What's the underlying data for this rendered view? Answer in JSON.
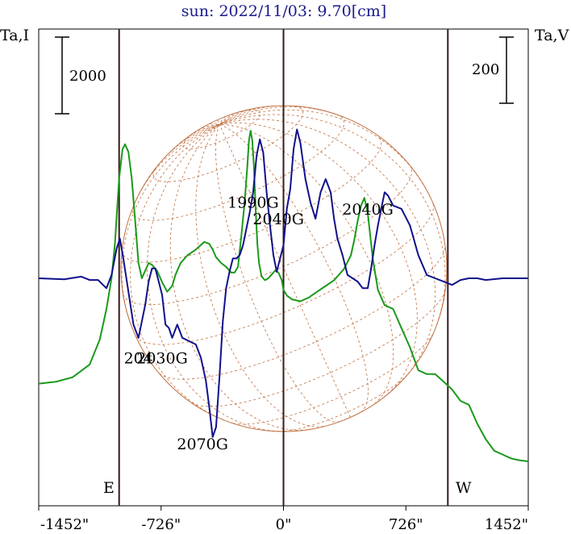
{
  "chart_data": {
    "type": "line",
    "title": "sun: 2022/11/03: 9.70[cm]",
    "ylabel_left": "Ta,I",
    "ylabel_right": "Ta,V",
    "scale_left": "2000",
    "scale_right": "200",
    "x_ticks": [
      "-1452\"",
      "-726\"",
      "0\"",
      "726\"",
      "1452\""
    ],
    "x_tick_values": [
      -1452,
      -726,
      0,
      726,
      1452
    ],
    "xlim": [
      -1452,
      1452
    ],
    "east_label": "E",
    "west_label": "W",
    "limb_lines": [
      -975,
      0,
      975
    ],
    "series": [
      {
        "name": "",
        "color": "#1a9a1a",
        "x": [
          -1452,
          -1350,
          -1250,
          -1150,
          -1090,
          -1050,
          -1020,
          -1000,
          -990,
          -975,
          -955,
          -940,
          -920,
          -900,
          -880,
          -860,
          -840,
          -820,
          -800,
          -780,
          -750,
          -720,
          -690,
          -660,
          -640,
          -610,
          -570,
          -520,
          -470,
          -440,
          -420,
          -400,
          -370,
          -340,
          -310,
          -290,
          -270,
          -250,
          -230,
          -215,
          -205,
          -195,
          -185,
          -175,
          -165,
          -155,
          -145,
          -130,
          -110,
          -90,
          -70,
          -50,
          -30,
          -10,
          0,
          20,
          50,
          100,
          150,
          200,
          250,
          300,
          330,
          360,
          400,
          420,
          440,
          460,
          480,
          500,
          530,
          560,
          600,
          650,
          700,
          750,
          800,
          850,
          900,
          950,
          1000,
          1050,
          1100,
          1150,
          1200,
          1250,
          1300,
          1350,
          1400,
          1452
        ],
        "y": [
          -2750,
          -2700,
          -2580,
          -2250,
          -1600,
          -800,
          0,
          900,
          1600,
          2600,
          3370,
          3500,
          3300,
          2600,
          1500,
          400,
          0,
          200,
          400,
          350,
          200,
          -100,
          -350,
          -200,
          100,
          400,
          600,
          750,
          950,
          900,
          750,
          550,
          400,
          300,
          150,
          150,
          300,
          1100,
          2000,
          2900,
          3600,
          3850,
          3600,
          2900,
          1800,
          900,
          400,
          50,
          -50,
          0,
          100,
          200,
          150,
          -50,
          -300,
          -450,
          -550,
          -600,
          -500,
          -350,
          -200,
          -50,
          100,
          250,
          600,
          1000,
          1500,
          1900,
          2100,
          1700,
          500,
          -300,
          -700,
          -800,
          -1300,
          -1800,
          -2400,
          -2500,
          -2500,
          -2700,
          -2900,
          -3200,
          -3300,
          -3800,
          -4200,
          -4500,
          -4600,
          -4700,
          -4750,
          -4780
        ]
      },
      {
        "name": "",
        "color": "#10108c",
        "x": [
          -1452,
          -1300,
          -1200,
          -1150,
          -1100,
          -1070,
          -1050,
          -1020,
          -990,
          -970,
          -950,
          -920,
          -890,
          -860,
          -840,
          -820,
          -800,
          -780,
          -760,
          -740,
          -720,
          -700,
          -680,
          -660,
          -630,
          -600,
          -560,
          -520,
          -490,
          -460,
          -440,
          -420,
          -400,
          -380,
          -360,
          -340,
          -320,
          -300,
          -280,
          -260,
          -240,
          -220,
          -200,
          -180,
          -160,
          -140,
          -120,
          -100,
          -80,
          -60,
          -40,
          -20,
          0,
          20,
          40,
          60,
          80,
          100,
          130,
          160,
          190,
          220,
          250,
          280,
          300,
          320,
          350,
          380,
          410,
          440,
          470,
          500,
          520,
          540,
          560,
          580,
          600,
          620,
          650,
          700,
          750,
          800,
          850,
          900,
          950,
          1000,
          1050,
          1100,
          1150,
          1200,
          1300,
          1452
        ],
        "y": [
          0,
          -3,
          5,
          -5,
          -5,
          -20,
          -30,
          10,
          90,
          120,
          60,
          -40,
          -140,
          -180,
          -130,
          -80,
          -10,
          30,
          30,
          -10,
          -50,
          -140,
          -150,
          -180,
          -140,
          -180,
          -190,
          -200,
          -240,
          -310,
          -390,
          -480,
          -450,
          -300,
          -130,
          -30,
          20,
          60,
          60,
          70,
          100,
          150,
          200,
          260,
          370,
          420,
          380,
          260,
          160,
          70,
          20,
          60,
          100,
          210,
          270,
          390,
          450,
          410,
          300,
          230,
          180,
          260,
          300,
          260,
          180,
          120,
          70,
          10,
          0,
          -10,
          -30,
          -30,
          30,
          100,
          160,
          210,
          260,
          250,
          220,
          210,
          160,
          70,
          10,
          0,
          -10,
          -20,
          -5,
          0,
          0,
          -5,
          0,
          0
        ]
      }
    ],
    "annotations": [
      {
        "text": "1990G",
        "x": -180,
        "y": 230
      },
      {
        "text": "2040G",
        "x": -30,
        "y": 180
      },
      {
        "text": "2040G",
        "x": 500,
        "y": 210
      },
      {
        "text": "204",
        "x": -860,
        "y": -240
      },
      {
        "text": "2030G",
        "x": -720,
        "y": -240
      },
      {
        "text": "2070G",
        "x": -480,
        "y": -500
      }
    ]
  }
}
